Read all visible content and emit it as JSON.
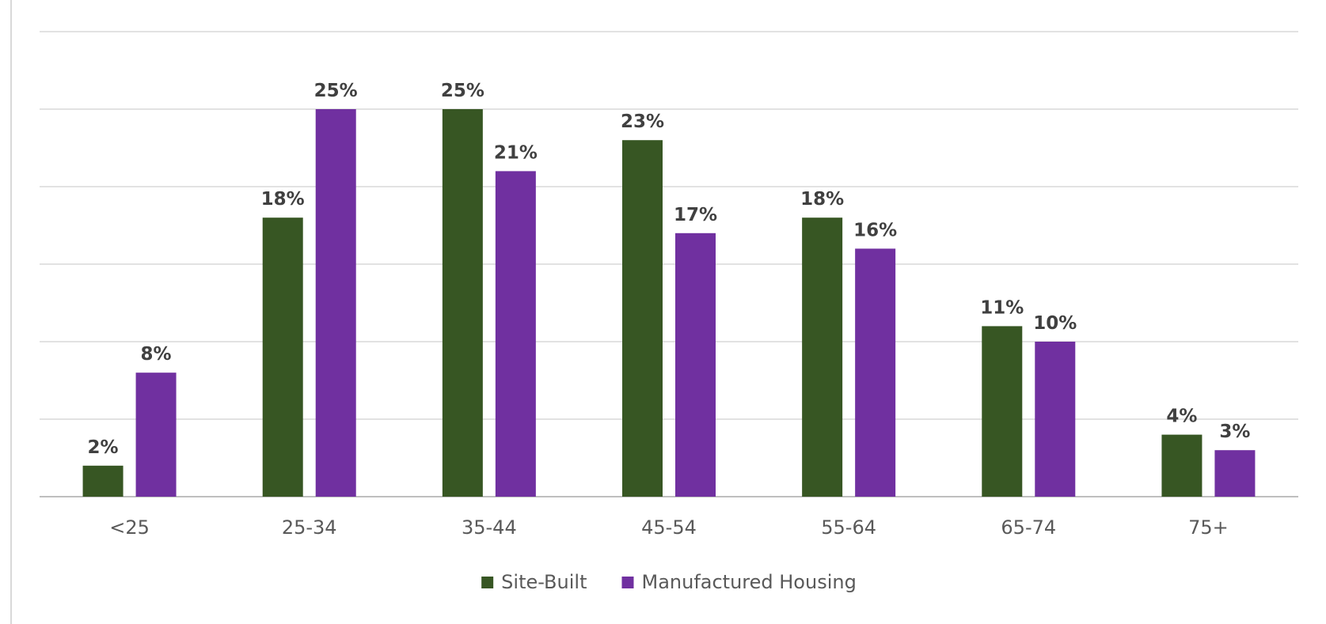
{
  "chart_data": {
    "type": "bar",
    "title": "",
    "xlabel": "",
    "ylabel": "",
    "categories": [
      "<25",
      "25-34",
      "35-44",
      "45-54",
      "55-64",
      "65-74",
      "75+"
    ],
    "series": [
      {
        "name": "Site-Built",
        "color": "#375623",
        "values": [
          2,
          18,
          25,
          23,
          18,
          11,
          4
        ],
        "labels": [
          "2%",
          "18%",
          "25%",
          "23%",
          "18%",
          "11%",
          "4%"
        ]
      },
      {
        "name": "Manufactured Housing",
        "color": "#7030a0",
        "values": [
          8,
          25,
          21,
          17,
          16,
          10,
          3
        ],
        "labels": [
          "8%",
          "25%",
          "21%",
          "17%",
          "16%",
          "10%",
          "3%"
        ]
      }
    ],
    "ylim": [
      0,
      30
    ],
    "gridlines": true,
    "y_tick_labels_visible": false,
    "legend_position": "bottom"
  }
}
